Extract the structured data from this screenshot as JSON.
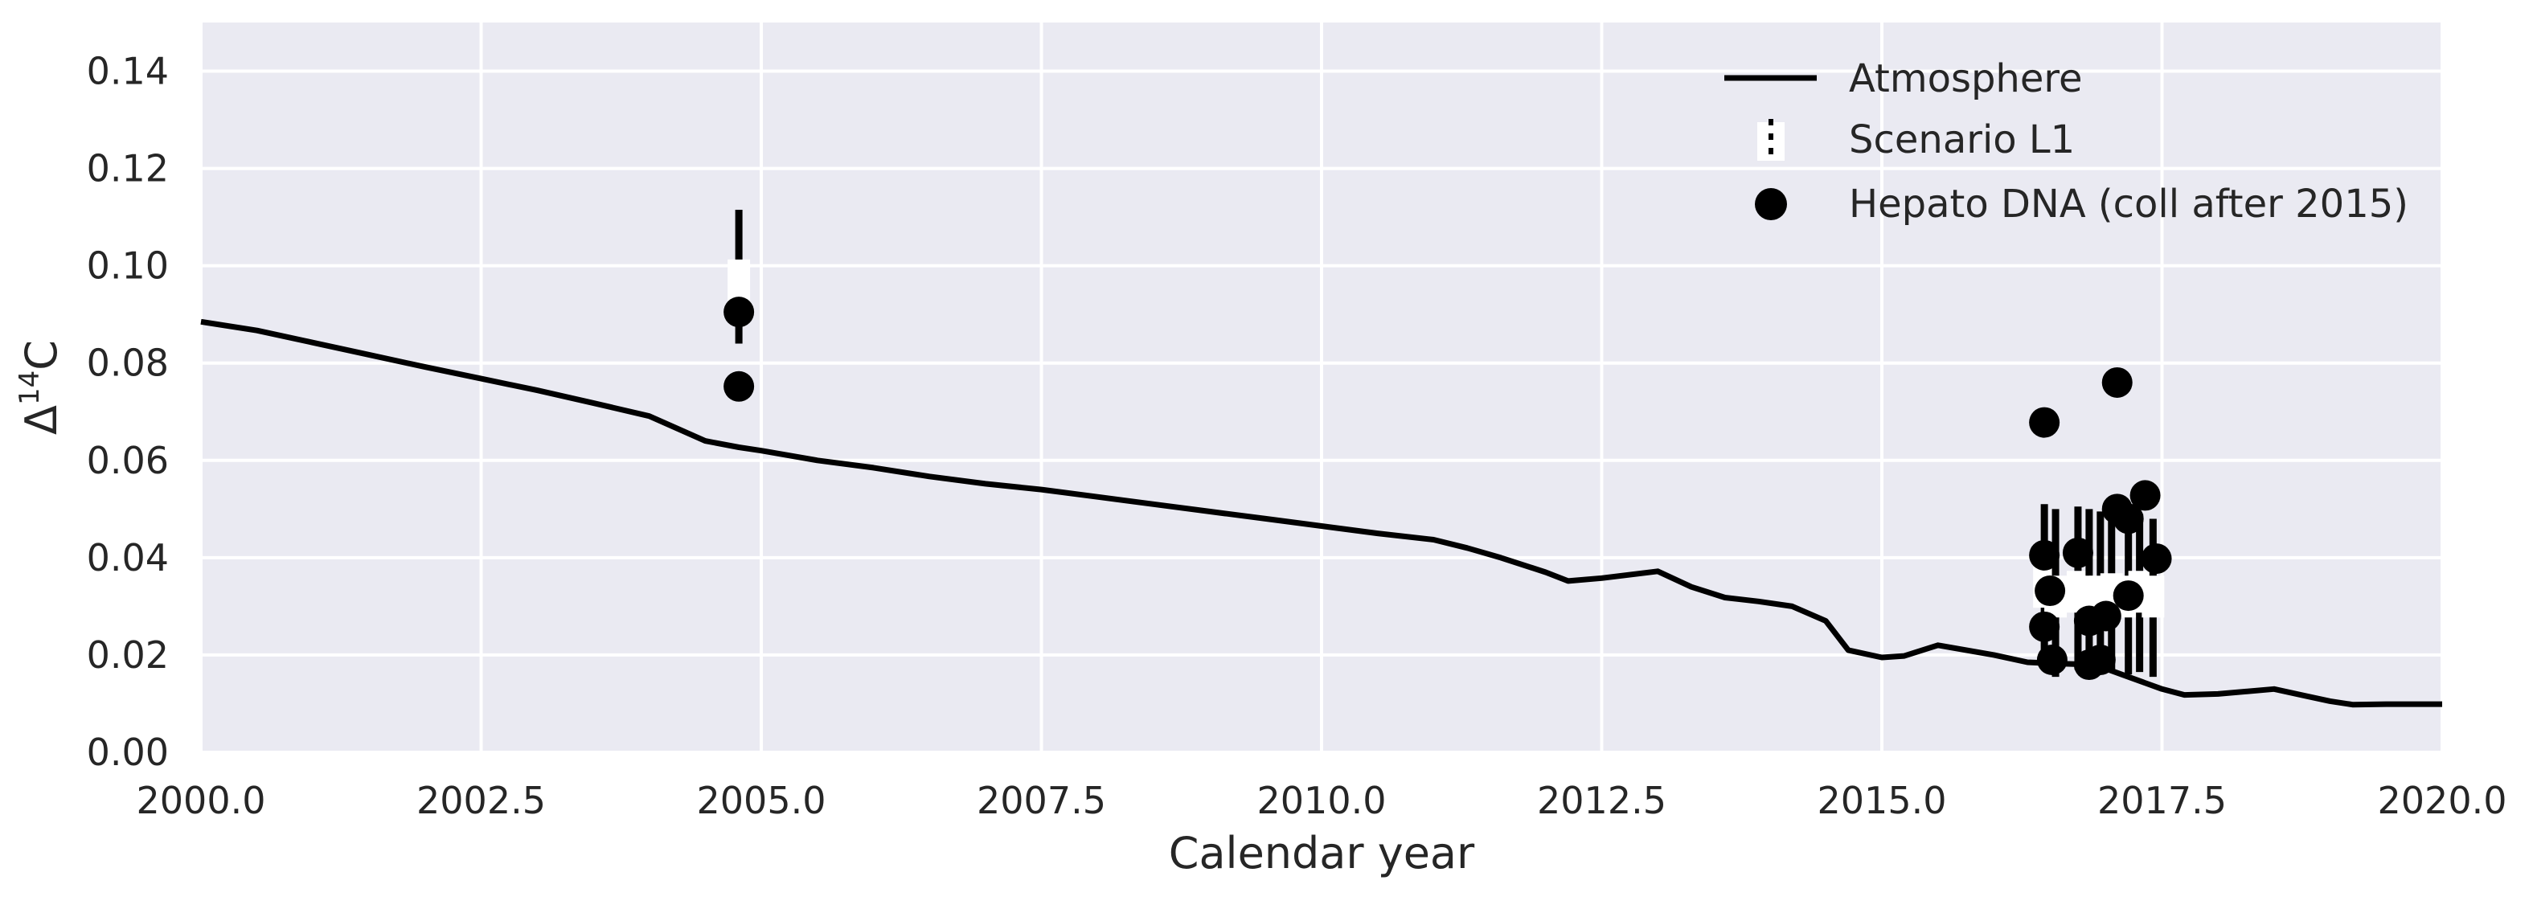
{
  "chart_data": {
    "type": "scatter",
    "xlabel": "Calendar year",
    "ylabel_main": "Δ",
    "ylabel_sup": "14",
    "ylabel_tail": "C",
    "xlim": [
      2000.0,
      2020.0
    ],
    "ylim": [
      0.0,
      0.15
    ],
    "x_ticks": [
      "2000.0",
      "2002.5",
      "2005.0",
      "2007.5",
      "2010.0",
      "2012.5",
      "2015.0",
      "2017.5",
      "2020.0"
    ],
    "x_tick_values": [
      2000.0,
      2002.5,
      2005.0,
      2007.5,
      2010.0,
      2012.5,
      2015.0,
      2017.5,
      2020.0
    ],
    "y_ticks": [
      "0.00",
      "0.02",
      "0.04",
      "0.06",
      "0.08",
      "0.10",
      "0.12",
      "0.14"
    ],
    "y_tick_values": [
      0.0,
      0.02,
      0.04,
      0.06,
      0.08,
      0.1,
      0.12,
      0.14
    ],
    "grid": true,
    "legend_position": "top-right",
    "colors": {
      "background": "#eaeaf2",
      "grid": "#ffffff",
      "series": "#000000"
    },
    "series": [
      {
        "name": "Atmosphere",
        "kind": "line",
        "points": [
          [
            2000.0,
            0.0885
          ],
          [
            2000.5,
            0.0867
          ],
          [
            2001.0,
            0.0842
          ],
          [
            2001.5,
            0.0817
          ],
          [
            2002.0,
            0.0792
          ],
          [
            2002.5,
            0.0768
          ],
          [
            2003.0,
            0.0744
          ],
          [
            2003.5,
            0.0718
          ],
          [
            2004.0,
            0.0691
          ],
          [
            2004.5,
            0.064
          ],
          [
            2004.8,
            0.0627
          ],
          [
            2005.0,
            0.062
          ],
          [
            2005.5,
            0.06
          ],
          [
            2006.0,
            0.0585
          ],
          [
            2006.5,
            0.0567
          ],
          [
            2007.0,
            0.0552
          ],
          [
            2007.5,
            0.054
          ],
          [
            2008.0,
            0.0525
          ],
          [
            2008.5,
            0.051
          ],
          [
            2009.0,
            0.0495
          ],
          [
            2009.5,
            0.048
          ],
          [
            2010.0,
            0.0465
          ],
          [
            2010.5,
            0.045
          ],
          [
            2011.0,
            0.0437
          ],
          [
            2011.3,
            0.042
          ],
          [
            2011.6,
            0.04
          ],
          [
            2012.0,
            0.037
          ],
          [
            2012.2,
            0.0352
          ],
          [
            2012.5,
            0.0358
          ],
          [
            2013.0,
            0.0372
          ],
          [
            2013.3,
            0.034
          ],
          [
            2013.6,
            0.0318
          ],
          [
            2013.9,
            0.031
          ],
          [
            2014.2,
            0.03
          ],
          [
            2014.5,
            0.027
          ],
          [
            2014.7,
            0.021
          ],
          [
            2015.0,
            0.0195
          ],
          [
            2015.2,
            0.0198
          ],
          [
            2015.5,
            0.022
          ],
          [
            2016.0,
            0.02
          ],
          [
            2016.3,
            0.0185
          ],
          [
            2016.6,
            0.0182
          ],
          [
            2016.9,
            0.018
          ],
          [
            2017.2,
            0.0155
          ],
          [
            2017.5,
            0.013
          ],
          [
            2017.7,
            0.0118
          ],
          [
            2018.0,
            0.012
          ],
          [
            2018.5,
            0.013
          ],
          [
            2018.8,
            0.0115
          ],
          [
            2019.0,
            0.0105
          ],
          [
            2019.2,
            0.0098
          ],
          [
            2019.5,
            0.0099
          ],
          [
            2020.0,
            0.0099
          ]
        ]
      },
      {
        "name": "Scenario L1",
        "kind": "errorbar",
        "points": [
          {
            "x": 2004.8,
            "y": 0.097,
            "low": 0.084,
            "high": 0.1115
          },
          {
            "x": 2016.45,
            "y": 0.034,
            "low": 0.017,
            "high": 0.051
          },
          {
            "x": 2016.55,
            "y": 0.032,
            "low": 0.0155,
            "high": 0.05
          },
          {
            "x": 2016.75,
            "y": 0.033,
            "low": 0.017,
            "high": 0.0505
          },
          {
            "x": 2016.85,
            "y": 0.032,
            "low": 0.016,
            "high": 0.05
          },
          {
            "x": 2016.95,
            "y": 0.032,
            "low": 0.016,
            "high": 0.0495
          },
          {
            "x": 2017.05,
            "y": 0.0325,
            "low": 0.0165,
            "high": 0.0495
          },
          {
            "x": 2017.2,
            "y": 0.032,
            "low": 0.016,
            "high": 0.049
          },
          {
            "x": 2017.3,
            "y": 0.033,
            "low": 0.0165,
            "high": 0.049
          },
          {
            "x": 2017.42,
            "y": 0.032,
            "low": 0.0155,
            "high": 0.048
          }
        ]
      },
      {
        "name": "Hepato DNA (coll after 2015)",
        "kind": "scatter",
        "points": [
          [
            2004.8,
            0.0905
          ],
          [
            2004.8,
            0.0752
          ],
          [
            2016.45,
            0.0678
          ],
          [
            2016.45,
            0.0405
          ],
          [
            2016.45,
            0.0258
          ],
          [
            2016.5,
            0.0332
          ],
          [
            2016.52,
            0.019
          ],
          [
            2016.75,
            0.041
          ],
          [
            2016.85,
            0.018
          ],
          [
            2016.85,
            0.027
          ],
          [
            2016.95,
            0.019
          ],
          [
            2017.0,
            0.028
          ],
          [
            2017.1,
            0.076
          ],
          [
            2017.1,
            0.05
          ],
          [
            2017.2,
            0.048
          ],
          [
            2017.2,
            0.0322
          ],
          [
            2017.35,
            0.0528
          ],
          [
            2017.45,
            0.0398
          ]
        ]
      }
    ]
  }
}
